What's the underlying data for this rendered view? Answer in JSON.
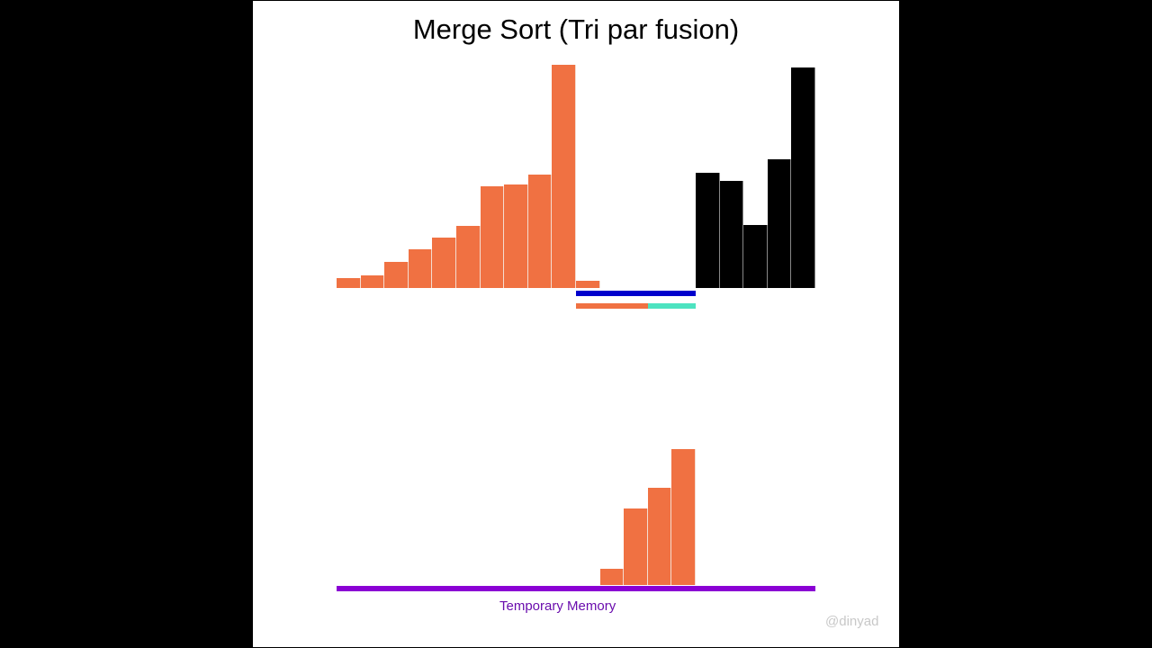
{
  "title": "Merge Sort (Tri par fusion)",
  "memory_label": "Temporary Memory",
  "watermark": "@dinyad",
  "colors": {
    "active": "#f07142",
    "unsorted": "#000000",
    "range": "#0000cc",
    "left_half": "#f07142",
    "right_half": "#4de3c0",
    "memory": "#8a00d4",
    "background": "#ffffff"
  },
  "chart_data": {
    "type": "bar",
    "title": "Merge Sort (Tri par fusion)",
    "xlabel": "",
    "ylabel": "",
    "grid": false,
    "slot_count": 20,
    "main_array": [
      {
        "slot": 0,
        "value": 11,
        "color": "orange"
      },
      {
        "slot": 1,
        "value": 14,
        "color": "orange"
      },
      {
        "slot": 2,
        "value": 29,
        "color": "orange"
      },
      {
        "slot": 3,
        "value": 43,
        "color": "orange"
      },
      {
        "slot": 4,
        "value": 56,
        "color": "orange"
      },
      {
        "slot": 5,
        "value": 69,
        "color": "orange"
      },
      {
        "slot": 6,
        "value": 113,
        "color": "orange"
      },
      {
        "slot": 7,
        "value": 115,
        "color": "orange"
      },
      {
        "slot": 8,
        "value": 126,
        "color": "orange"
      },
      {
        "slot": 9,
        "value": 248,
        "color": "orange"
      },
      {
        "slot": 10,
        "value": 8,
        "color": "orange"
      },
      {
        "slot": 15,
        "value": 128,
        "color": "black"
      },
      {
        "slot": 16,
        "value": 119,
        "color": "black"
      },
      {
        "slot": 17,
        "value": 70,
        "color": "black"
      },
      {
        "slot": 18,
        "value": 143,
        "color": "black"
      },
      {
        "slot": 19,
        "value": 245,
        "color": "black"
      }
    ],
    "temporary_memory": [
      {
        "slot": 11,
        "value": 18
      },
      {
        "slot": 12,
        "value": 85
      },
      {
        "slot": 13,
        "value": 108
      },
      {
        "slot": 14,
        "value": 151
      }
    ],
    "indicators": {
      "merge_range": {
        "from_slot": 10,
        "to_slot": 14
      },
      "left_half": {
        "from_slot": 10,
        "to_slot": 12.9
      },
      "right_half": {
        "from_slot": 13,
        "to_slot": 14
      }
    }
  }
}
